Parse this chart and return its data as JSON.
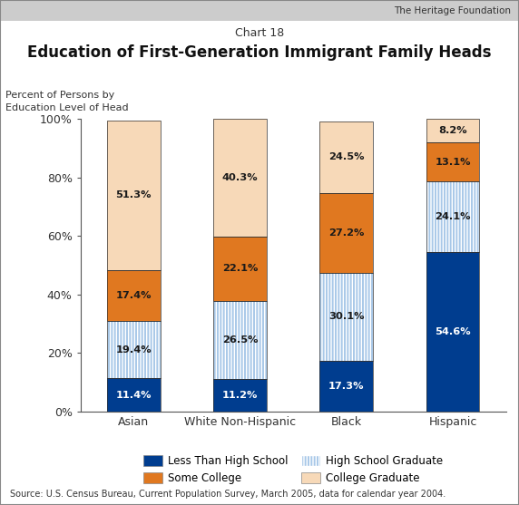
{
  "chart_label": "Chart 18",
  "title": "Education of First-Generation Immigrant Family Heads",
  "ylabel_line1": "Percent of Persons by",
  "ylabel_line2": "Education Level of Head",
  "source": "Source: U.S. Census Bureau, Current Population Survey, March 2005, data for calendar year 2004.",
  "categories": [
    "Asian",
    "White Non-Hispanic",
    "Black",
    "Hispanic"
  ],
  "segments": {
    "less_than_hs": [
      11.4,
      11.2,
      17.3,
      54.6
    ],
    "hs_graduate": [
      19.4,
      26.5,
      30.1,
      24.1
    ],
    "some_college": [
      17.4,
      22.1,
      27.2,
      13.1
    ],
    "college_grad": [
      51.3,
      40.3,
      24.5,
      8.2
    ]
  },
  "labels": {
    "less_than_hs": [
      "11.4%",
      "11.2%",
      "17.3%",
      "54.6%"
    ],
    "hs_graduate": [
      "19.4%",
      "26.5%",
      "30.1%",
      "24.1%"
    ],
    "some_college": [
      "17.4%",
      "22.1%",
      "27.2%",
      "13.1%"
    ],
    "college_grad": [
      "51.3%",
      "40.3%",
      "24.5%",
      "8.2%"
    ]
  },
  "colors": {
    "less_than_hs": "#003d8f",
    "hs_graduate_base": "#a8c8e8",
    "some_college": "#e07820",
    "college_grad": "#f7d9b8"
  },
  "ylim": [
    0,
    100
  ],
  "yticks": [
    0,
    20,
    40,
    60,
    80,
    100
  ],
  "ytick_labels": [
    "0%",
    "20%",
    "40%",
    "60%",
    "80%",
    "100%"
  ],
  "bar_width": 0.5,
  "background_color": "#ffffff",
  "plot_bg": "#ffffff",
  "heritage_text": "The Heritage Foundation",
  "label_color_white": "#ffffff",
  "label_color_dark": "#1a1a1a",
  "border_color": "#888888",
  "header_bg": "#d4d4d4"
}
